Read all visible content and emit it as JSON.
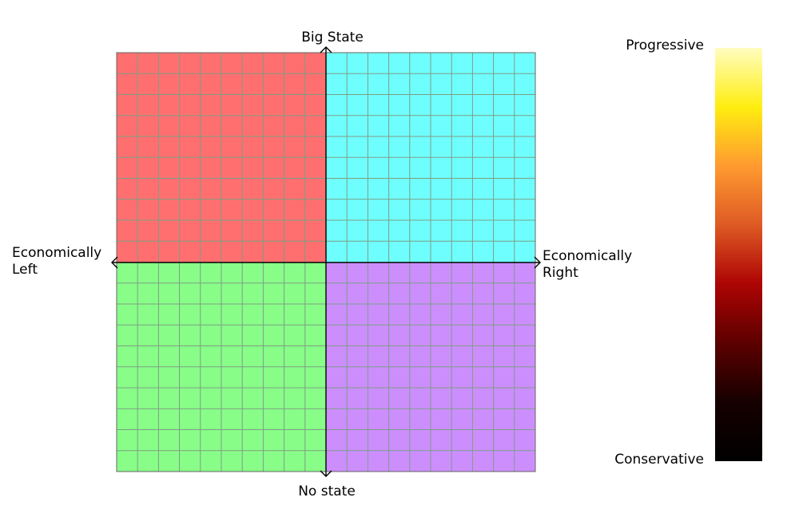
{
  "chart_data": {
    "type": "heatmap",
    "kind": "political compass",
    "axes": {
      "top_label": "Big State",
      "bottom_label": "No state",
      "left_label_line1": "Economically",
      "left_label_line2": "Left",
      "right_label_line1": "Economically",
      "right_label_line2": "Right"
    },
    "grid": true,
    "grid_divisions": 20,
    "quadrants": [
      {
        "position": "top-left",
        "color": "#ff6f6f"
      },
      {
        "position": "top-right",
        "color": "#6ffefe"
      },
      {
        "position": "bottom-left",
        "color": "#88fe88"
      },
      {
        "position": "bottom-right",
        "color": "#cc8efd"
      }
    ],
    "grid_line_color": "#7f9d86",
    "colorbar": {
      "top_label": "Progressive",
      "bottom_label": "Conservative",
      "colormap": "afmhot",
      "stops": [
        "#fffdc0",
        "#ffee10",
        "#ff9a30",
        "#de5a24",
        "#ad0404",
        "#5c0000",
        "#160000",
        "#000000"
      ]
    }
  }
}
